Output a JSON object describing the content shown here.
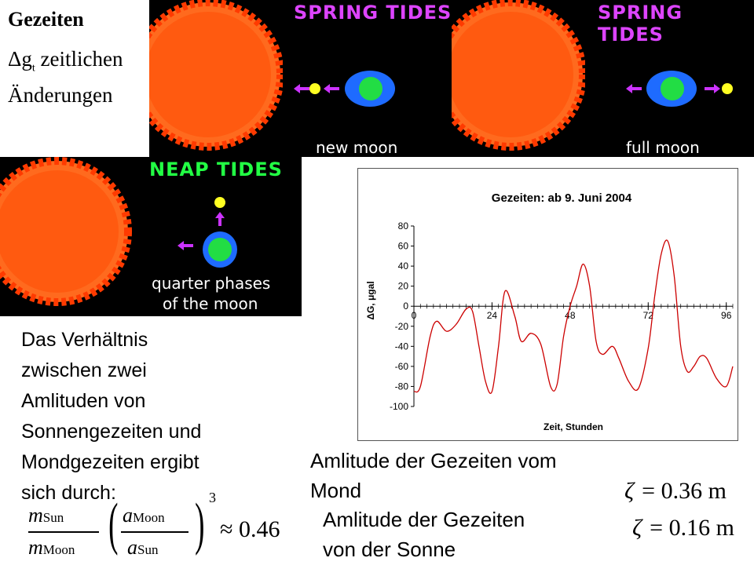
{
  "header": {
    "title": "Gezeiten",
    "delta_symbol": "Δg",
    "delta_subscript": "t",
    "subtitle_rest": " zeitlichen",
    "subtitle_line2": "Änderungen"
  },
  "panels": {
    "spring_new": {
      "title": "SPRING TIDES",
      "caption": "new moon"
    },
    "spring_full": {
      "title": "SPRING TIDES",
      "caption": "full moon"
    },
    "neap": {
      "title": "NEAP TIDES",
      "caption_line1": "quarter phases",
      "caption_line2": "of the moon"
    }
  },
  "colors": {
    "sun": "#ff6a1e",
    "sun_inner": "#ff5a10",
    "earth_ocean": "#1e6bff",
    "earth_land": "#22dd44",
    "moon": "#ffff22",
    "arrow": "#cc33ff",
    "title_spring": "#dd44ff",
    "title_neap": "#22ff44",
    "curve": "#cc0000"
  },
  "paragraph": {
    "lines": [
      "Das Verhältnis",
      "zwischen zwei",
      "Amlituden von",
      "Sonnengezeiten und",
      "Mondgezeiten ergibt",
      "sich durch:"
    ]
  },
  "formula": {
    "m_sun": "m",
    "sun_sub": "Sun",
    "m_moon": "m",
    "moon_sub": "Moon",
    "a_moon": "a",
    "a_moon_sub": "Moon",
    "a_sun": "a",
    "a_sun_sub": "Sun",
    "exponent": "3",
    "approx": "≈ 0.46"
  },
  "labels": {
    "moon_amp_line1": "Amlitude der Gezeiten vom",
    "moon_amp_line2": "Mond",
    "sun_amp_line1": "Amlitude der Gezeiten",
    "sun_amp_line2": "von der Sonne"
  },
  "zeta": {
    "moon": {
      "symbol": "ζ",
      "value": "= 0.36 m"
    },
    "sun": {
      "symbol": "ζ",
      "value": "= 0.16 m"
    }
  },
  "chart_data": {
    "type": "line",
    "title": "Gezeiten:  ab 9. Juni 2004",
    "xlabel": "Zeit, Stunden",
    "ylabel": "ΔG, μgal",
    "xlim": [
      0,
      98
    ],
    "ylim": [
      -100,
      80
    ],
    "xticks": [
      0,
      24,
      48,
      72,
      96
    ],
    "yticks": [
      80,
      60,
      40,
      20,
      0,
      -20,
      -40,
      -60,
      -80,
      -100
    ],
    "grid": false,
    "series": [
      {
        "x": [
          0,
          2,
          5,
          7,
          10,
          13,
          16,
          18,
          20,
          22,
          24,
          26,
          28,
          31,
          33,
          36,
          39,
          42,
          44,
          46,
          48,
          50,
          52,
          54,
          56,
          58,
          61,
          63,
          66,
          69,
          72,
          74,
          76,
          78,
          80,
          82,
          84,
          86,
          88,
          90,
          93,
          96,
          98
        ],
        "y": [
          -85,
          -80,
          -30,
          -15,
          -25,
          -18,
          -3,
          -5,
          -40,
          -75,
          -85,
          -40,
          15,
          -10,
          -35,
          -27,
          -38,
          -80,
          -78,
          -30,
          0,
          20,
          42,
          20,
          -35,
          -48,
          -40,
          -52,
          -75,
          -82,
          -42,
          10,
          52,
          65,
          30,
          -40,
          -65,
          -60,
          -50,
          -52,
          -72,
          -80,
          -60
        ]
      }
    ]
  }
}
